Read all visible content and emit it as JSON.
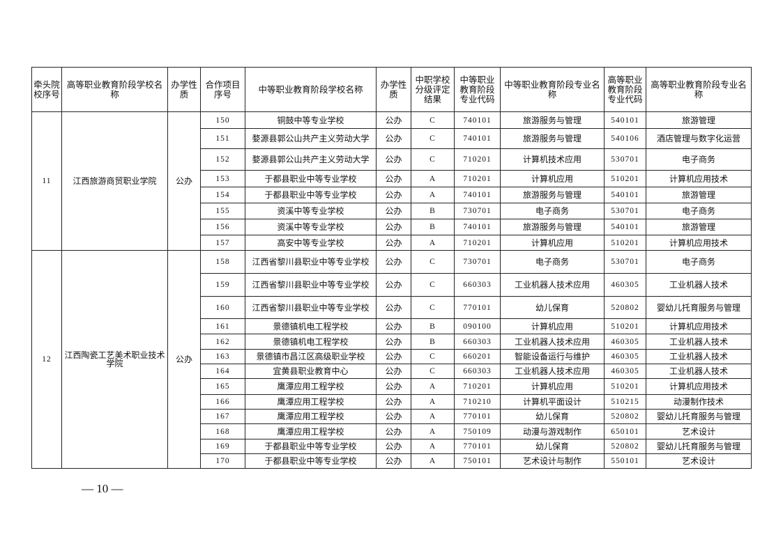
{
  "headers": [
    "牵头院校序号",
    "高等职业教育阶段学校名称",
    "办学性质",
    "合作项目序号",
    "中等职业教育阶段学校名称",
    "办学性质",
    "中职学校分级评定结果",
    "中等职业教育阶段专业代码",
    "中等职业教育阶段专业名称",
    "高等职业教育阶段专业代码",
    "高等职业教育阶段专业名称"
  ],
  "groups": [
    {
      "lead_no": "11",
      "higher_school": "江西旅游商贸职业学院",
      "higher_nature": "公办",
      "rows": [
        [
          "150",
          "铜鼓中等专业学校",
          "公办",
          "C",
          "740101",
          "旅游服务与管理",
          "540101",
          "旅游管理"
        ],
        [
          "151",
          "婺源县郭公山共产主义劳动大学",
          "公办",
          "C",
          "740101",
          "旅游服务与管理",
          "540106",
          "酒店管理与数字化运营"
        ],
        [
          "152",
          "婺源县郭公山共产主义劳动大学",
          "公办",
          "C",
          "710201",
          "计算机技术应用",
          "530701",
          "电子商务"
        ],
        [
          "153",
          "于都县职业中等专业学校",
          "公办",
          "A",
          "710201",
          "计算机应用",
          "510201",
          "计算机应用技术"
        ],
        [
          "154",
          "于都县职业中等专业学校",
          "公办",
          "A",
          "740101",
          "旅游服务与管理",
          "540101",
          "旅游管理"
        ],
        [
          "155",
          "资溪中等专业学校",
          "公办",
          "B",
          "730701",
          "电子商务",
          "530701",
          "电子商务"
        ],
        [
          "156",
          "资溪中等专业学校",
          "公办",
          "B",
          "740101",
          "旅游服务与管理",
          "540101",
          "旅游管理"
        ],
        [
          "157",
          "高安中等专业学校",
          "公办",
          "A",
          "710201",
          "计算机应用",
          "510201",
          "计算机应用技术"
        ]
      ]
    },
    {
      "lead_no": "12",
      "higher_school": "江西陶瓷工艺美术职业技术学院",
      "higher_nature": "公办",
      "rows": [
        [
          "158",
          "江西省黎川县职业中等专业学校",
          "公办",
          "C",
          "730701",
          "电子商务",
          "530701",
          "电子商务"
        ],
        [
          "159",
          "江西省黎川县职业中等专业学校",
          "公办",
          "C",
          "660303",
          "工业机器人技术应用",
          "460305",
          "工业机器人技术"
        ],
        [
          "160",
          "江西省黎川县职业中等专业学校",
          "公办",
          "C",
          "770101",
          "幼儿保育",
          "520802",
          "婴幼儿托育服务与管理"
        ],
        [
          "161",
          "景德镇机电工程学校",
          "公办",
          "B",
          "090100",
          "计算机应用",
          "510201",
          "计算机应用技术"
        ],
        [
          "162",
          "景德镇机电工程学校",
          "公办",
          "B",
          "660303",
          "工业机器人技术应用",
          "460305",
          "工业机器人技术"
        ],
        [
          "163",
          "景德镇市昌江区高级职业学校",
          "公办",
          "C",
          "660201",
          "智能设备运行与维护",
          "460305",
          "工业机器人技术"
        ],
        [
          "164",
          "宜黄县职业教育中心",
          "公办",
          "C",
          "660303",
          "工业机器人技术应用",
          "460305",
          "工业机器人技术"
        ],
        [
          "165",
          "鹰潭应用工程学校",
          "公办",
          "A",
          "710201",
          "计算机应用",
          "510201",
          "计算机应用技术"
        ],
        [
          "166",
          "鹰潭应用工程学校",
          "公办",
          "A",
          "710210",
          "计算机平面设计",
          "510215",
          "动漫制作技术"
        ],
        [
          "167",
          "鹰潭应用工程学校",
          "公办",
          "A",
          "770101",
          "幼儿保育",
          "520802",
          "婴幼儿托育服务与管理"
        ],
        [
          "168",
          "鹰潭应用工程学校",
          "公办",
          "A",
          "750109",
          "动漫与游戏制作",
          "650101",
          "艺术设计"
        ],
        [
          "169",
          "于都县职业中等专业学校",
          "公办",
          "A",
          "770101",
          "幼儿保育",
          "520802",
          "婴幼儿托育服务与管理"
        ],
        [
          "170",
          "于都县职业中等专业学校",
          "公办",
          "A",
          "750101",
          "艺术设计与制作",
          "550101",
          "艺术设计"
        ]
      ]
    }
  ],
  "page_number": "— 10 —"
}
